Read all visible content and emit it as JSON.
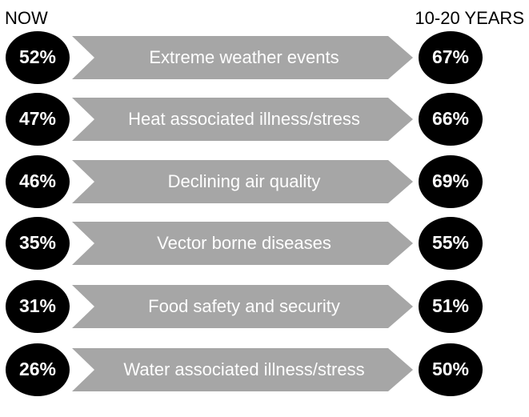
{
  "chart_data": {
    "type": "table",
    "columns": {
      "left": "NOW",
      "right": "10-20 YEARS"
    },
    "rows": [
      {
        "label": "Extreme weather events",
        "now": "52%",
        "future": "67%"
      },
      {
        "label": "Heat associated illness/stress",
        "now": "47%",
        "future": "66%"
      },
      {
        "label": "Declining air quality",
        "now": "46%",
        "future": "69%"
      },
      {
        "label": "Vector borne diseases",
        "now": "35%",
        "future": "55%"
      },
      {
        "label": "Food safety and security",
        "now": "31%",
        "future": "51%"
      },
      {
        "label": "Water associated illness/stress",
        "now": "26%",
        "future": "50%"
      }
    ],
    "colors": {
      "badge": "#000000",
      "arrow": "#a6a6a6",
      "text_on_dark": "#ffffff",
      "header": "#000000"
    }
  }
}
